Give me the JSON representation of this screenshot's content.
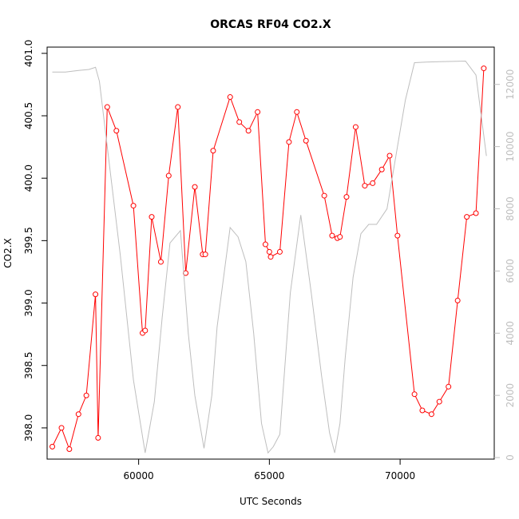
{
  "chart_data": {
    "type": "line",
    "title": "ORCAS RF04 CO2.X",
    "xlabel": "UTC Seconds",
    "ylabel": "CO2.X",
    "xlim": [
      56500,
      73600
    ],
    "ylim": [
      397.75,
      401.05
    ],
    "y2lim": [
      -50,
      13200
    ],
    "x_ticks": [
      60000,
      65000,
      70000
    ],
    "y_ticks": [
      398.0,
      398.5,
      399.0,
      399.5,
      400.0,
      400.5,
      401.0
    ],
    "y_tick_labels": [
      "398.0",
      "398.5",
      "399.0",
      "399.5",
      "400.0",
      "400.5",
      "401.0"
    ],
    "y2_ticks": [
      0,
      2000,
      4000,
      6000,
      8000,
      10000,
      12000
    ],
    "grid": false,
    "colors": {
      "co2": "#ff0000",
      "secondary": "#bebebe",
      "axis": "#000000"
    },
    "series": [
      {
        "axis": "left",
        "style": "line+points",
        "color": "#ff0000",
        "x": [
          56700,
          57050,
          57350,
          57700,
          58000,
          58350,
          58450,
          58800,
          59150,
          59800,
          60150,
          60250,
          60500,
          60850,
          61150,
          61500,
          61800,
          62150,
          62450,
          62550,
          62850,
          63500,
          63850,
          64200,
          64550,
          64850,
          65000,
          65050,
          65400,
          65750,
          66050,
          66400,
          67100,
          67400,
          67600,
          67700,
          67950,
          68300,
          68650,
          68950,
          69300,
          69600,
          69900,
          70550,
          70850,
          71200,
          71500,
          71850,
          72200,
          72550,
          72900,
          73200
        ],
        "y": [
          397.85,
          398.0,
          397.83,
          398.11,
          398.26,
          399.07,
          397.92,
          400.57,
          400.38,
          399.78,
          398.76,
          398.78,
          399.69,
          399.33,
          400.02,
          400.57,
          399.24,
          399.93,
          399.39,
          399.39,
          400.22,
          400.65,
          400.45,
          400.38,
          400.53,
          399.47,
          399.41,
          399.37,
          399.41,
          400.29,
          400.53,
          400.3,
          399.86,
          399.54,
          399.52,
          399.53,
          399.85,
          400.41,
          399.94,
          399.96,
          400.07,
          400.18,
          399.54,
          398.27,
          398.14,
          398.11,
          398.21,
          398.33,
          399.02,
          399.69,
          399.72,
          400.88
        ]
      },
      {
        "axis": "right",
        "style": "line",
        "color": "#bebebe",
        "x": [
          56700,
          57200,
          57700,
          58100,
          58350,
          58500,
          58800,
          59300,
          59800,
          60250,
          60600,
          60900,
          61200,
          61600,
          61900,
          62150,
          62500,
          62800,
          63000,
          63500,
          63800,
          64100,
          64400,
          64700,
          64950,
          65150,
          65400,
          65800,
          66200,
          66600,
          67000,
          67300,
          67500,
          67700,
          67900,
          68200,
          68500,
          68800,
          69100,
          69500,
          69900,
          70200,
          70550,
          71000,
          71500,
          72000,
          72500,
          72900,
          73300
        ],
        "y": [
          12400,
          12400,
          12450,
          12480,
          12550,
          12100,
          10000,
          6500,
          2500,
          150,
          1800,
          4500,
          6900,
          7300,
          4000,
          2000,
          300,
          2000,
          4200,
          7400,
          7100,
          6300,
          4000,
          1100,
          150,
          350,
          750,
          5300,
          7800,
          5300,
          2600,
          800,
          150,
          1100,
          3200,
          5800,
          7200,
          7500,
          7500,
          8000,
          10000,
          11500,
          12700,
          12720,
          12730,
          12740,
          12750,
          12300,
          9700
        ]
      }
    ]
  }
}
